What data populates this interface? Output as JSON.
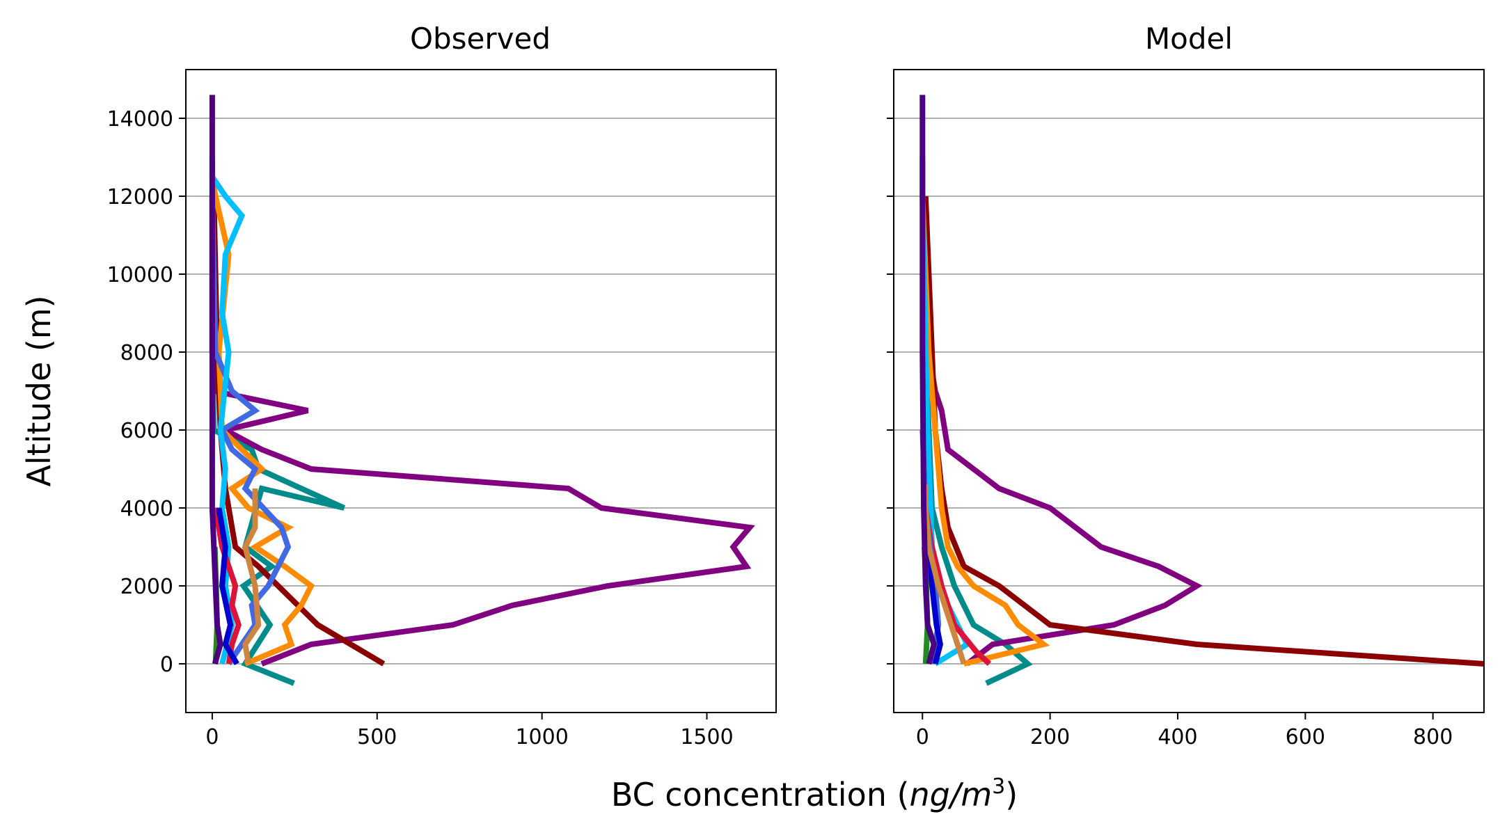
{
  "figure": {
    "shared_xlabel": "BC concentration (ng/m³)",
    "shared_xlabel_parts": {
      "prefix": "BC concentration (",
      "unit_num": "ng/m",
      "unit_exp": "3",
      "suffix": ")"
    },
    "shared_ylabel": "Altitude (m)"
  },
  "chart_data": [
    {
      "type": "line",
      "title": "Observed",
      "xlabel": "BC concentration (ng/m³)",
      "ylabel": "Altitude (m)",
      "xlim": [
        -80,
        1710
      ],
      "ylim": [
        -1250,
        15250
      ],
      "xticks": [
        0,
        500,
        1000,
        1500
      ],
      "yticks": [
        0,
        2000,
        4000,
        6000,
        8000,
        10000,
        12000,
        14000
      ],
      "grid": "horizontal",
      "legend": "none",
      "series": [
        {
          "color": "#008B8B",
          "x": [
            248,
            100,
            175,
            95,
            180,
            100,
            150,
            400,
            140,
            120,
            5,
            0,
            0,
            0,
            0
          ],
          "y": [
            -500,
            0,
            1000,
            2000,
            2500,
            3000,
            4500,
            4000,
            5000,
            5500,
            6000,
            8000,
            10000,
            12000,
            13000
          ]
        },
        {
          "color": "#800080",
          "x": [
            150,
            300,
            730,
            910,
            1200,
            1620,
            1580,
            1630,
            1180,
            1080,
            300,
            150,
            40,
            290,
            5,
            0,
            0,
            0
          ],
          "y": [
            0,
            500,
            1000,
            1500,
            2000,
            2500,
            3000,
            3500,
            4000,
            4500,
            5000,
            5500,
            6000,
            6500,
            7000,
            8000,
            10000,
            12000
          ]
        },
        {
          "color": "#8B0000",
          "x": [
            520,
            320,
            200,
            140,
            70,
            40,
            25,
            15,
            10,
            5,
            0
          ],
          "y": [
            0,
            1000,
            2000,
            2500,
            3000,
            4500,
            6000,
            8000,
            10000,
            12000,
            12500
          ]
        },
        {
          "color": "#FF8C00",
          "x": [
            100,
            240,
            220,
            270,
            300,
            220,
            130,
            230,
            110,
            60,
            150,
            90,
            30,
            20,
            50,
            10,
            0
          ],
          "y": [
            0,
            500,
            1000,
            1500,
            2000,
            2500,
            3000,
            3500,
            4000,
            4500,
            5000,
            5500,
            6000,
            8000,
            10500,
            12000,
            12500
          ]
        },
        {
          "color": "#4169E1",
          "x": [
            50,
            130,
            120,
            170,
            230,
            210,
            100,
            130,
            60,
            30,
            130,
            60,
            10,
            0
          ],
          "y": [
            0,
            1000,
            1500,
            2000,
            3000,
            3500,
            4500,
            5000,
            5500,
            6000,
            6500,
            7000,
            8000,
            12000
          ]
        },
        {
          "color": "#00BFFF",
          "x": [
            30,
            60,
            40,
            50,
            30,
            40,
            25,
            50,
            30,
            40,
            90,
            40,
            0
          ],
          "y": [
            0,
            1000,
            2000,
            3000,
            4000,
            5000,
            6000,
            8000,
            9000,
            10500,
            11500,
            12000,
            12500
          ]
        },
        {
          "color": "#DC143C",
          "x": [
            50,
            60,
            80,
            60,
            70,
            50,
            30,
            10
          ],
          "y": [
            0,
            500,
            1000,
            1500,
            2000,
            2500,
            3000,
            4000
          ]
        },
        {
          "color": "#0000CD",
          "x": [
            75,
            40,
            55,
            30,
            40,
            20
          ],
          "y": [
            0,
            500,
            1000,
            2000,
            3000,
            4000
          ]
        },
        {
          "color": "#228B22",
          "x": [
            10,
            15,
            12,
            8
          ],
          "y": [
            0,
            1000,
            2000,
            3000
          ]
        },
        {
          "color": "#CD853F",
          "x": [
            110,
            100,
            140,
            130,
            100,
            130,
            130,
            130
          ],
          "y": [
            0,
            500,
            1000,
            2000,
            3000,
            3500,
            4000,
            4500
          ]
        },
        {
          "color": "#4B0082",
          "x": [
            8,
            25,
            15,
            10,
            5,
            0,
            0,
            0
          ],
          "y": [
            0,
            500,
            1000,
            2000,
            3000,
            4000,
            8000,
            14600
          ]
        }
      ]
    },
    {
      "type": "line",
      "title": "Model",
      "xlabel": "BC concentration (ng/m³)",
      "ylabel": "",
      "xlim": [
        -45,
        880
      ],
      "ylim": [
        -1250,
        15250
      ],
      "xticks": [
        0,
        200,
        400,
        600,
        800
      ],
      "yticks": [
        0,
        2000,
        4000,
        6000,
        8000,
        10000,
        12000,
        14000
      ],
      "grid": "horizontal",
      "legend": "none",
      "series": [
        {
          "color": "#008B8B",
          "x": [
            100,
            165,
            130,
            80,
            50,
            30,
            15,
            10,
            5,
            0,
            0
          ],
          "y": [
            -500,
            0,
            500,
            1000,
            2000,
            3000,
            4000,
            6000,
            8000,
            12000,
            13000
          ]
        },
        {
          "color": "#800080",
          "x": [
            70,
            110,
            300,
            380,
            430,
            370,
            280,
            200,
            120,
            40,
            30,
            20,
            10,
            5,
            0
          ],
          "y": [
            0,
            500,
            1000,
            1500,
            2000,
            2500,
            3000,
            4000,
            4500,
            5500,
            6500,
            7000,
            8000,
            10000,
            12000
          ]
        },
        {
          "color": "#8B0000",
          "x": [
            880,
            430,
            200,
            120,
            65,
            40,
            30,
            20,
            15,
            10,
            5
          ],
          "y": [
            0,
            500,
            1000,
            2000,
            2500,
            3500,
            4500,
            6000,
            8000,
            10000,
            12000
          ]
        },
        {
          "color": "#FF8C00",
          "x": [
            65,
            190,
            150,
            130,
            80,
            55,
            40,
            30,
            10,
            0
          ],
          "y": [
            0,
            500,
            1000,
            1500,
            2000,
            2500,
            3000,
            4000,
            8000,
            12000
          ]
        },
        {
          "color": "#00BFFF",
          "x": [
            20,
            70,
            55,
            40,
            25,
            15,
            8,
            0
          ],
          "y": [
            0,
            500,
            1000,
            1500,
            2000,
            3000,
            6000,
            12000
          ]
        },
        {
          "color": "#DC143C",
          "x": [
            105,
            85,
            50,
            30,
            15,
            5
          ],
          "y": [
            0,
            300,
            1000,
            2000,
            3000,
            4000
          ]
        },
        {
          "color": "#4169E1",
          "x": [
            15,
            25,
            20,
            12,
            5,
            0
          ],
          "y": [
            0,
            1000,
            2000,
            3000,
            4000,
            6000
          ]
        },
        {
          "color": "#0000CD",
          "x": [
            20,
            28,
            22,
            15,
            5
          ],
          "y": [
            0,
            500,
            1000,
            2000,
            3000
          ]
        },
        {
          "color": "#228B22",
          "x": [
            5,
            8,
            6,
            3
          ],
          "y": [
            0,
            1000,
            2000,
            3000
          ]
        },
        {
          "color": "#CD853F",
          "x": [
            65,
            45,
            25,
            10,
            5,
            5
          ],
          "y": [
            0,
            1000,
            2000,
            3000,
            4000,
            4600
          ]
        },
        {
          "color": "#4B0082",
          "x": [
            10,
            18,
            8,
            5,
            2,
            0,
            0,
            0
          ],
          "y": [
            0,
            500,
            1000,
            2000,
            4000,
            8000,
            12000,
            14600
          ]
        }
      ]
    }
  ]
}
